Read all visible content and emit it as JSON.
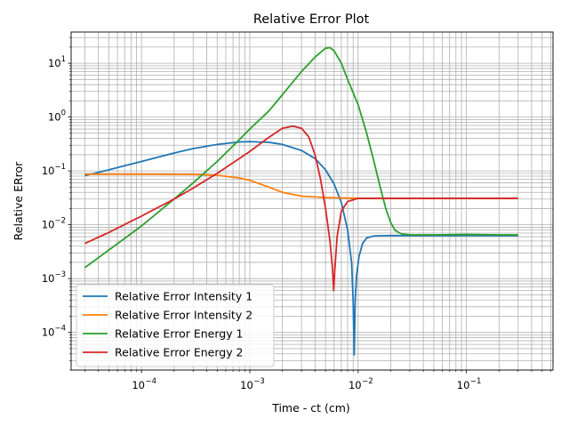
{
  "chart_data": {
    "type": "line",
    "title": "Relative Error Plot",
    "xlabel": "Time - ct (cm)",
    "ylabel": "Relative ERror",
    "xscale": "log",
    "yscale": "log",
    "xlim": [
      2.24e-05,
      0.63
    ],
    "ylim": [
      2e-05,
      38
    ],
    "x_ticks": [
      {
        "value": 0.0001,
        "base": "10",
        "exp": "−4"
      },
      {
        "value": 0.001,
        "base": "10",
        "exp": "−3"
      },
      {
        "value": 0.01,
        "base": "10",
        "exp": "−2"
      },
      {
        "value": 0.1,
        "base": "10",
        "exp": "−1"
      }
    ],
    "y_ticks": [
      {
        "value": 0.0001,
        "base": "10",
        "exp": "−4"
      },
      {
        "value": 0.001,
        "base": "10",
        "exp": "−3"
      },
      {
        "value": 0.01,
        "base": "10",
        "exp": "−2"
      },
      {
        "value": 0.1,
        "base": "10",
        "exp": "−1"
      },
      {
        "value": 1,
        "base": "10",
        "exp": "0"
      },
      {
        "value": 10,
        "base": "10",
        "exp": "1"
      }
    ],
    "grid": "major and minor",
    "legend_position": "lower-left",
    "series": [
      {
        "name": "Relative Error Intensity 1",
        "color": "#1f77b4",
        "points": [
          [
            3e-05,
            0.082
          ],
          [
            5e-05,
            0.105
          ],
          [
            0.0001,
            0.15
          ],
          [
            0.0002,
            0.215
          ],
          [
            0.0003,
            0.26
          ],
          [
            0.0005,
            0.31
          ],
          [
            0.0008,
            0.345
          ],
          [
            0.001,
            0.35
          ],
          [
            0.0015,
            0.34
          ],
          [
            0.002,
            0.31
          ],
          [
            0.003,
            0.24
          ],
          [
            0.004,
            0.17
          ],
          [
            0.005,
            0.105
          ],
          [
            0.006,
            0.057
          ],
          [
            0.007,
            0.026
          ],
          [
            0.008,
            0.008
          ],
          [
            0.0087,
            0.002
          ],
          [
            0.009,
            0.0004
          ],
          [
            0.0092,
            3.8e-05
          ],
          [
            0.0094,
            0.0004
          ],
          [
            0.0097,
            0.0012
          ],
          [
            0.0102,
            0.0026
          ],
          [
            0.011,
            0.0045
          ],
          [
            0.012,
            0.0057
          ],
          [
            0.014,
            0.0062
          ],
          [
            0.02,
            0.0063
          ],
          [
            0.05,
            0.0063
          ],
          [
            0.1,
            0.0063
          ],
          [
            0.3,
            0.0063
          ]
        ]
      },
      {
        "name": "Relative Error Intensity 2",
        "color": "#ff7f0e",
        "points": [
          [
            3e-05,
            0.087
          ],
          [
            0.0001,
            0.087
          ],
          [
            0.0003,
            0.086
          ],
          [
            0.0005,
            0.083
          ],
          [
            0.0008,
            0.074
          ],
          [
            0.001,
            0.067
          ],
          [
            0.0015,
            0.05
          ],
          [
            0.002,
            0.04
          ],
          [
            0.003,
            0.034
          ],
          [
            0.005,
            0.032
          ],
          [
            0.01,
            0.031
          ],
          [
            0.1,
            0.031
          ],
          [
            0.3,
            0.031
          ]
        ]
      },
      {
        "name": "Relative Error Energy 1",
        "color": "#2ca02c",
        "points": [
          [
            3e-05,
            0.0016
          ],
          [
            5e-05,
            0.0034
          ],
          [
            0.0001,
            0.0095
          ],
          [
            0.0002,
            0.03
          ],
          [
            0.0003,
            0.06
          ],
          [
            0.0005,
            0.15
          ],
          [
            0.0008,
            0.38
          ],
          [
            0.001,
            0.6
          ],
          [
            0.0015,
            1.3
          ],
          [
            0.002,
            2.6
          ],
          [
            0.003,
            7
          ],
          [
            0.004,
            13
          ],
          [
            0.005,
            19
          ],
          [
            0.0055,
            19.5
          ],
          [
            0.006,
            17
          ],
          [
            0.007,
            10
          ],
          [
            0.008,
            5
          ],
          [
            0.01,
            1.7
          ],
          [
            0.012,
            0.5
          ],
          [
            0.014,
            0.15
          ],
          [
            0.016,
            0.05
          ],
          [
            0.018,
            0.02
          ],
          [
            0.02,
            0.011
          ],
          [
            0.022,
            0.0078
          ],
          [
            0.025,
            0.0068
          ],
          [
            0.03,
            0.0065
          ],
          [
            0.05,
            0.0065
          ],
          [
            0.1,
            0.0066
          ],
          [
            0.2,
            0.0065
          ],
          [
            0.3,
            0.0065
          ]
        ]
      },
      {
        "name": "Relative Error Energy 2",
        "color": "#d62728",
        "points": [
          [
            3e-05,
            0.0045
          ],
          [
            5e-05,
            0.0072
          ],
          [
            0.0001,
            0.0145
          ],
          [
            0.0002,
            0.03
          ],
          [
            0.0003,
            0.048
          ],
          [
            0.0005,
            0.09
          ],
          [
            0.0008,
            0.17
          ],
          [
            0.001,
            0.23
          ],
          [
            0.0015,
            0.42
          ],
          [
            0.002,
            0.62
          ],
          [
            0.0025,
            0.68
          ],
          [
            0.003,
            0.62
          ],
          [
            0.0035,
            0.43
          ],
          [
            0.004,
            0.2
          ],
          [
            0.0045,
            0.07
          ],
          [
            0.005,
            0.02
          ],
          [
            0.0055,
            0.005
          ],
          [
            0.0058,
            0.0015
          ],
          [
            0.00595,
            0.0006
          ],
          [
            0.0061,
            0.0015
          ],
          [
            0.0064,
            0.006
          ],
          [
            0.007,
            0.018
          ],
          [
            0.008,
            0.027
          ],
          [
            0.01,
            0.031
          ],
          [
            0.1,
            0.031
          ],
          [
            0.3,
            0.031
          ]
        ]
      }
    ]
  }
}
